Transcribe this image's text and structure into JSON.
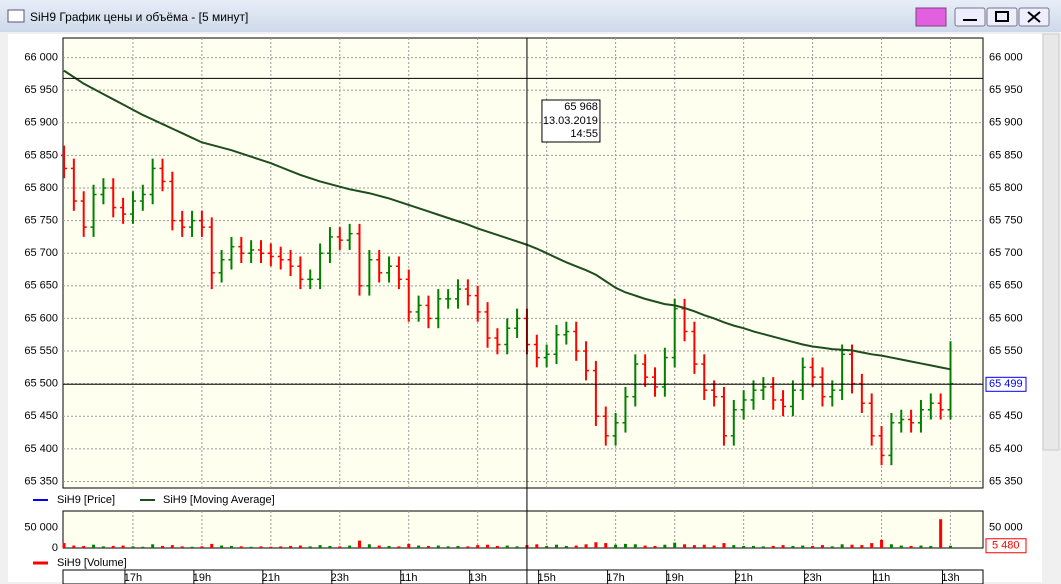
{
  "window_title": "SiH9 График цены и объёма - [5 минут]",
  "chart_data": [
    {
      "type": "ohlc",
      "categories": [
        null,
        null,
        null,
        null,
        null,
        null,
        null,
        "17h",
        null,
        null,
        null,
        null,
        null,
        null,
        "19h",
        null,
        null,
        null,
        null,
        null,
        null,
        "21h",
        null,
        null,
        null,
        null,
        null,
        null,
        "23h",
        null,
        null,
        null,
        null,
        null,
        null,
        "11h",
        null,
        null,
        null,
        null,
        null,
        null,
        "13h",
        null,
        null,
        null,
        null,
        null,
        null,
        "15h",
        null,
        null,
        null,
        null,
        null,
        null,
        "17h",
        null,
        null,
        null,
        null,
        null,
        "19h",
        null,
        null,
        null,
        null,
        null,
        null,
        "21h",
        null,
        null,
        null,
        null,
        null,
        null,
        "23h",
        null,
        null,
        null,
        null,
        null,
        null,
        "11h",
        null,
        null,
        null,
        null,
        null,
        null,
        "13h"
      ],
      "series": [
        {
          "name": "SiH9 [Price]",
          "color": "#0000ff",
          "up_color": "#008000",
          "down_color": "#ff0000",
          "open": [
            65850,
            65830,
            65780,
            65740,
            65790,
            65800,
            65770,
            65760,
            65780,
            65790,
            65830,
            65810,
            65750,
            65740,
            65750,
            65740,
            65670,
            65690,
            65710,
            65700,
            65705,
            65700,
            65695,
            65690,
            65680,
            65660,
            65660,
            65700,
            65725,
            65720,
            65730,
            65650,
            65690,
            65670,
            65680,
            65660,
            65610,
            65620,
            65600,
            65630,
            65630,
            65645,
            65635,
            65610,
            65570,
            65560,
            65585,
            65600,
            65560,
            65540,
            65545,
            65575,
            65580,
            65550,
            65520,
            65450,
            65420,
            65440,
            65480,
            65530,
            65510,
            65495,
            65540,
            65615,
            65580,
            65530,
            65490,
            65480,
            65420,
            65460,
            65475,
            65490,
            65495,
            65475,
            65465,
            65490,
            65525,
            65510,
            65480,
            65490,
            65545,
            65500,
            65470,
            65420,
            65390,
            65440,
            65445,
            65440,
            65460,
            65470,
            65460
          ],
          "high": [
            65865,
            65845,
            65795,
            65805,
            65815,
            65815,
            65785,
            65795,
            65805,
            65845,
            65845,
            65825,
            65765,
            65765,
            65765,
            65755,
            65705,
            65725,
            65725,
            65720,
            65720,
            65715,
            65710,
            65705,
            65695,
            65675,
            65715,
            65740,
            65740,
            65745,
            65745,
            65705,
            65705,
            65695,
            65695,
            65675,
            65635,
            65635,
            65645,
            65645,
            65660,
            65660,
            65650,
            65625,
            65585,
            65600,
            65615,
            65615,
            65575,
            65560,
            65590,
            65595,
            65595,
            65565,
            65535,
            65465,
            65455,
            65495,
            65545,
            65545,
            65525,
            65555,
            65630,
            65630,
            65595,
            65545,
            65505,
            65495,
            65475,
            65490,
            65505,
            65510,
            65510,
            65490,
            65505,
            65540,
            65540,
            65525,
            65505,
            65560,
            65560,
            65515,
            65485,
            65435,
            65455,
            65460,
            65460,
            65475,
            65485,
            65485,
            65565
          ],
          "low": [
            65815,
            65765,
            65725,
            65725,
            65775,
            65755,
            65745,
            65745,
            65765,
            65775,
            65795,
            65735,
            65725,
            65725,
            65725,
            65645,
            65655,
            65675,
            65685,
            65685,
            65685,
            65680,
            65675,
            65665,
            65645,
            65645,
            65645,
            65685,
            65705,
            65705,
            65635,
            65635,
            65655,
            65655,
            65645,
            65595,
            65595,
            65585,
            65585,
            65615,
            65615,
            65620,
            65595,
            65555,
            65545,
            65545,
            65570,
            65545,
            65525,
            65525,
            65530,
            65560,
            65535,
            65505,
            65435,
            65405,
            65405,
            65425,
            65465,
            65495,
            65480,
            65480,
            65525,
            65565,
            65515,
            65475,
            65465,
            65405,
            65405,
            65445,
            65460,
            65475,
            65460,
            65450,
            65450,
            65475,
            65495,
            65465,
            65465,
            65475,
            65485,
            65455,
            65405,
            65375,
            65375,
            65425,
            65425,
            65425,
            65445,
            65445,
            65445
          ],
          "close": [
            65830,
            65780,
            65740,
            65790,
            65800,
            65770,
            65760,
            65780,
            65790,
            65830,
            65810,
            65750,
            65740,
            65750,
            65740,
            65670,
            65690,
            65710,
            65700,
            65705,
            65700,
            65695,
            65690,
            65680,
            65660,
            65660,
            65700,
            65725,
            65720,
            65730,
            65650,
            65690,
            65670,
            65680,
            65660,
            65610,
            65620,
            65600,
            65630,
            65630,
            65645,
            65635,
            65610,
            65570,
            65560,
            65585,
            65600,
            65560,
            65540,
            65545,
            65575,
            65580,
            65550,
            65520,
            65450,
            65420,
            65440,
            65480,
            65530,
            65510,
            65495,
            65540,
            65615,
            65580,
            65530,
            65490,
            65480,
            65420,
            65460,
            65475,
            65490,
            65495,
            65475,
            65465,
            65490,
            65525,
            65510,
            65480,
            65490,
            65545,
            65500,
            65470,
            65420,
            65390,
            65440,
            65445,
            65440,
            65460,
            65470,
            65460,
            65500
          ]
        },
        {
          "name": "SiH9 [Moving Average]",
          "type": "line",
          "color": "#1e4d1e",
          "values": [
            65980,
            65970,
            65960,
            65952,
            65944,
            65936,
            65928,
            65920,
            65912,
            65905,
            65898,
            65891,
            65884,
            65877,
            65870,
            65866,
            65862,
            65858,
            65853,
            65848,
            65843,
            65838,
            65832,
            65826,
            65820,
            65815,
            65810,
            65806,
            65802,
            65798,
            65795,
            65792,
            65788,
            65784,
            65779,
            65774,
            65769,
            65764,
            65759,
            65754,
            65749,
            65744,
            65738,
            65733,
            65728,
            65723,
            65718,
            65713,
            65707,
            65700,
            65693,
            65686,
            65680,
            65674,
            65667,
            65657,
            65647,
            65640,
            65635,
            65630,
            65626,
            65622,
            65620,
            65616,
            65611,
            65605,
            65600,
            65594,
            65589,
            65585,
            65580,
            65576,
            65572,
            65568,
            65564,
            65560,
            65557,
            65555,
            65553,
            65552,
            65551,
            65548,
            65545,
            65543,
            65540,
            65537,
            65534,
            65531,
            65528,
            65525,
            65522
          ]
        }
      ],
      "ylim": [
        65340,
        66030
      ],
      "yticks": [
        {
          "value": 65350,
          "label": "65 350"
        },
        {
          "value": 65400,
          "label": "65 400"
        },
        {
          "value": 65450,
          "label": "65 450"
        },
        {
          "value": 65500,
          "label": "65 500"
        },
        {
          "value": 65550,
          "label": "65 550"
        },
        {
          "value": 65600,
          "label": "65 600"
        },
        {
          "value": 65650,
          "label": "65 650"
        },
        {
          "value": 65700,
          "label": "65 700"
        },
        {
          "value": 65750,
          "label": "65 750"
        },
        {
          "value": 65800,
          "label": "65 800"
        },
        {
          "value": 65850,
          "label": "65 850"
        },
        {
          "value": 65900,
          "label": "65 900"
        },
        {
          "value": 65950,
          "label": "65 950"
        },
        {
          "value": 66000,
          "label": "66 000"
        }
      ],
      "grid": true,
      "last_value": {
        "value": 65499,
        "label": "65 499"
      },
      "crosshair": {
        "index": 47,
        "value": 65968,
        "label": "65 968",
        "date": "13.03.2019",
        "time": "14:55"
      }
    },
    {
      "type": "bar",
      "series": [
        {
          "name": "SiH9 [Volume]",
          "color": "#ff0000",
          "values": [
            12000,
            6000,
            5000,
            8000,
            4000,
            5000,
            6000,
            4000,
            3000,
            9000,
            5000,
            7000,
            4000,
            3000,
            4000,
            10000,
            6000,
            5000,
            4000,
            3000,
            4000,
            3000,
            4000,
            5000,
            6000,
            4000,
            7000,
            5000,
            4000,
            6000,
            18000,
            9000,
            6000,
            5000,
            4000,
            10000,
            6000,
            5000,
            6000,
            4000,
            5000,
            4000,
            7000,
            8000,
            5000,
            6000,
            4000,
            7000,
            9000,
            5000,
            8000,
            5000,
            6000,
            9000,
            14000,
            12000,
            8000,
            10000,
            9000,
            6000,
            5000,
            8000,
            13000,
            9000,
            7000,
            8000,
            6000,
            12000,
            7000,
            5000,
            5000,
            4000,
            5000,
            7000,
            5000,
            6000,
            5000,
            7000,
            4000,
            9000,
            8000,
            7000,
            12000,
            20000,
            9000,
            6000,
            5000,
            6000,
            5000,
            70000,
            5480
          ]
        }
      ],
      "ylim": [
        0,
        90000
      ],
      "yticks": [
        0,
        {
          "value": 50000,
          "label": "50 000"
        }
      ],
      "last_value": {
        "value": 5480,
        "label": "5 480"
      }
    }
  ]
}
